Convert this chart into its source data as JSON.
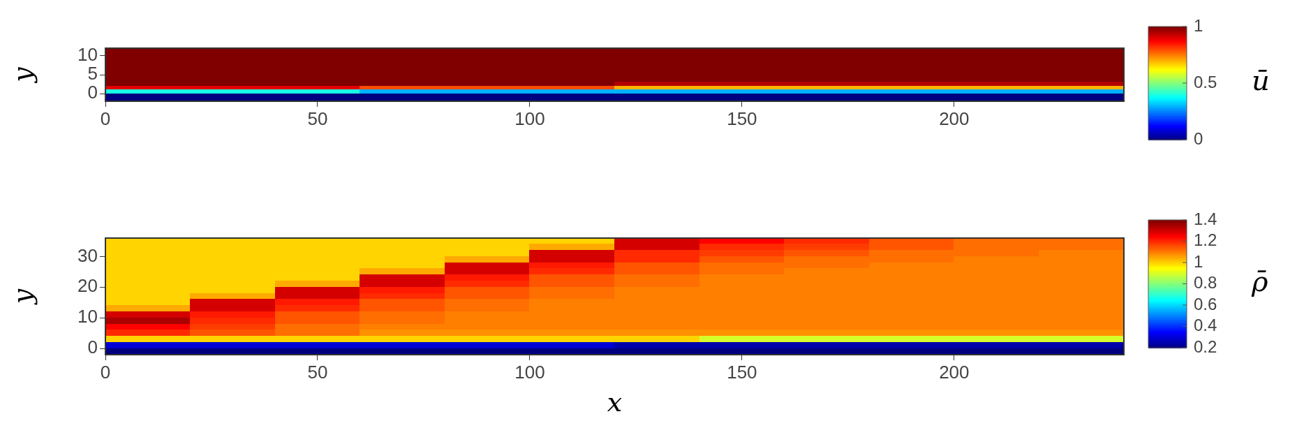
{
  "chart_data": [
    {
      "type": "heatmap",
      "ylabel": "y",
      "clabel": "ū",
      "xlim": [
        0,
        240
      ],
      "xticks": [
        0,
        50,
        100,
        150,
        200
      ],
      "ylim": [
        -2,
        12
      ],
      "yticks": [
        0,
        5,
        10
      ],
      "clim": [
        0,
        1
      ],
      "cticks": [
        0,
        0.5,
        1
      ],
      "cells": [
        [
          1,
          1,
          1,
          1,
          1,
          1,
          1,
          1,
          1,
          1,
          1,
          1
        ],
        [
          1,
          1,
          1,
          1,
          1,
          1,
          1,
          1,
          1,
          1,
          1,
          1
        ],
        [
          1,
          1,
          1,
          1,
          1,
          1,
          1,
          1,
          1,
          1,
          1,
          1
        ],
        [
          1,
          1,
          1,
          1,
          1,
          1,
          1,
          1,
          1,
          1,
          1,
          1
        ],
        [
          1,
          1,
          1,
          1,
          1,
          1,
          1,
          1,
          1,
          1,
          1,
          1
        ],
        [
          1,
          1,
          1,
          1,
          1,
          1,
          1,
          1,
          1,
          1,
          1,
          1
        ],
        [
          1,
          1,
          1,
          1,
          1,
          1,
          1,
          1,
          1,
          1,
          1,
          1
        ],
        [
          1,
          1,
          1,
          1,
          1,
          1,
          1,
          1,
          1,
          1,
          1,
          1
        ],
        [
          1,
          1,
          1,
          1,
          1,
          1,
          1,
          1,
          1,
          1,
          1,
          1
        ],
        [
          1,
          1,
          1,
          1,
          1,
          1,
          0.95,
          0.95,
          0.95,
          0.95,
          0.95,
          0.95
        ],
        [
          0.9,
          0.9,
          0.9,
          0.8,
          0.8,
          0.8,
          0.7,
          0.7,
          0.7,
          0.7,
          0.7,
          0.7
        ],
        [
          0.4,
          0.4,
          0.4,
          0.3,
          0.3,
          0.3,
          0.3,
          0.3,
          0.3,
          0.3,
          0.3,
          0.3
        ],
        [
          0,
          0,
          0,
          0,
          0,
          0,
          0,
          0,
          0,
          0,
          0,
          0
        ],
        [
          0,
          0,
          0,
          0,
          0,
          0,
          0,
          0,
          0,
          0,
          0,
          0
        ]
      ]
    },
    {
      "type": "heatmap",
      "xlabel": "x",
      "ylabel": "y",
      "clabel": "ρ̄",
      "xlim": [
        0,
        240
      ],
      "xticks": [
        0,
        50,
        100,
        150,
        200
      ],
      "ylim": [
        -2,
        36
      ],
      "yticks": [
        0,
        10,
        20,
        30
      ],
      "clim": [
        0.2,
        1.4
      ],
      "cticks": [
        0.2,
        0.4,
        0.6,
        0.8,
        1,
        1.2,
        1.4
      ],
      "cells": [
        [
          1,
          1,
          1,
          1,
          1,
          1,
          1.3,
          1.25,
          1.2,
          1.15,
          1.12,
          1.12
        ],
        [
          1,
          1,
          1,
          1,
          1,
          1.05,
          1.3,
          1.2,
          1.18,
          1.15,
          1.12,
          1.12
        ],
        [
          1,
          1,
          1,
          1,
          1,
          1.3,
          1.2,
          1.18,
          1.15,
          1.12,
          1.12,
          1.1
        ],
        [
          1,
          1,
          1,
          1,
          1.05,
          1.3,
          1.2,
          1.15,
          1.12,
          1.12,
          1.1,
          1.1
        ],
        [
          1,
          1,
          1,
          1,
          1.3,
          1.22,
          1.15,
          1.12,
          1.12,
          1.1,
          1.1,
          1.1
        ],
        [
          1,
          1,
          1,
          1.05,
          1.3,
          1.2,
          1.15,
          1.12,
          1.1,
          1.1,
          1.1,
          1.1
        ],
        [
          1,
          1,
          1,
          1.3,
          1.22,
          1.15,
          1.12,
          1.1,
          1.1,
          1.1,
          1.1,
          1.1
        ],
        [
          1,
          1,
          1.05,
          1.3,
          1.2,
          1.15,
          1.12,
          1.1,
          1.1,
          1.1,
          1.1,
          1.1
        ],
        [
          1,
          1,
          1.3,
          1.22,
          1.15,
          1.12,
          1.1,
          1.1,
          1.1,
          1.1,
          1.1,
          1.1
        ],
        [
          1,
          1.05,
          1.3,
          1.2,
          1.15,
          1.12,
          1.1,
          1.1,
          1.1,
          1.1,
          1.1,
          1.1
        ],
        [
          1,
          1.3,
          1.22,
          1.15,
          1.12,
          1.1,
          1.1,
          1.1,
          1.1,
          1.1,
          1.1,
          1.1
        ],
        [
          1.05,
          1.3,
          1.2,
          1.15,
          1.12,
          1.1,
          1.1,
          1.1,
          1.1,
          1.1,
          1.1,
          1.1
        ],
        [
          1.3,
          1.22,
          1.15,
          1.12,
          1.1,
          1.1,
          1.1,
          1.1,
          1.1,
          1.1,
          1.1,
          1.1
        ],
        [
          1.35,
          1.2,
          1.15,
          1.12,
          1.1,
          1.1,
          1.1,
          1.1,
          1.1,
          1.1,
          1.1,
          1.1
        ],
        [
          1.25,
          1.18,
          1.12,
          1.1,
          1.1,
          1.1,
          1.1,
          1.1,
          1.1,
          1.1,
          1.1,
          1.1
        ],
        [
          1.2,
          1.15,
          1.12,
          1.08,
          1.08,
          1.08,
          1.08,
          1.08,
          1.08,
          1.08,
          1.08,
          1.08
        ],
        [
          1,
          1,
          1,
          1,
          1,
          1,
          1,
          0.9,
          0.9,
          0.9,
          0.9,
          0.9
        ],
        [
          0.3,
          0.3,
          0.3,
          0.3,
          0.3,
          0.3,
          0.25,
          0.25,
          0.25,
          0.25,
          0.25,
          0.25
        ],
        [
          0.2,
          0.2,
          0.2,
          0.2,
          0.2,
          0.2,
          0.2,
          0.2,
          0.2,
          0.2,
          0.2,
          0.2
        ]
      ]
    }
  ]
}
